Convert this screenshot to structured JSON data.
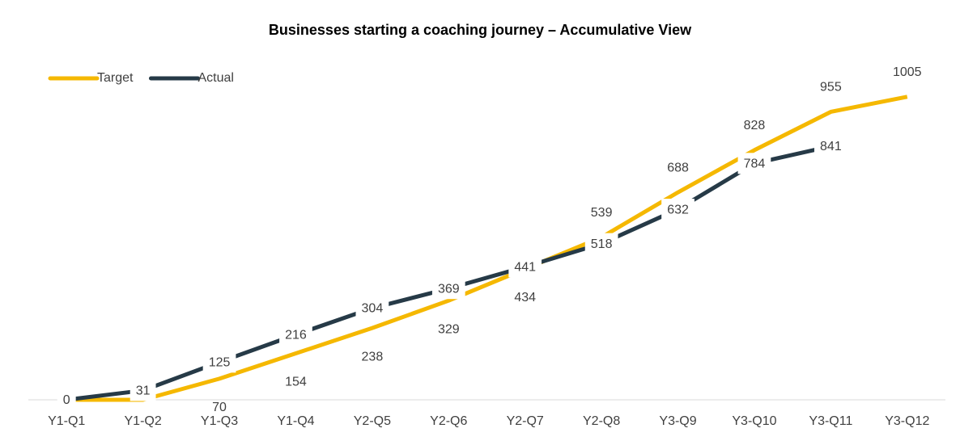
{
  "chart_data": {
    "type": "line",
    "title": "Businesses starting a coaching  journey – Accumulative View",
    "categories": [
      "Y1-Q1",
      "Y1-Q2",
      "Y1-Q3",
      "Y1-Q4",
      "Y2-Q5",
      "Y2-Q6",
      "Y2-Q7",
      "Y2-Q8",
      "Y3-Q9",
      "Y3-Q10",
      "Y3-Q11",
      "Y3-Q12"
    ],
    "series": [
      {
        "name": "Target",
        "color": "#f5b800",
        "values": [
          0,
          0,
          70,
          154,
          238,
          329,
          434,
          539,
          688,
          828,
          955,
          1005
        ],
        "value_labels": [
          null,
          null,
          "70",
          "154",
          "238",
          "329",
          "434",
          "539",
          "688",
          "828",
          "955",
          "1005"
        ]
      },
      {
        "name": "Actual",
        "color": "#263a47",
        "values": [
          0,
          31,
          125,
          216,
          304,
          369,
          441,
          518,
          632,
          784,
          841,
          null
        ]
      }
    ],
    "ylim": [
      0,
      1200
    ],
    "legend": "top-left"
  }
}
